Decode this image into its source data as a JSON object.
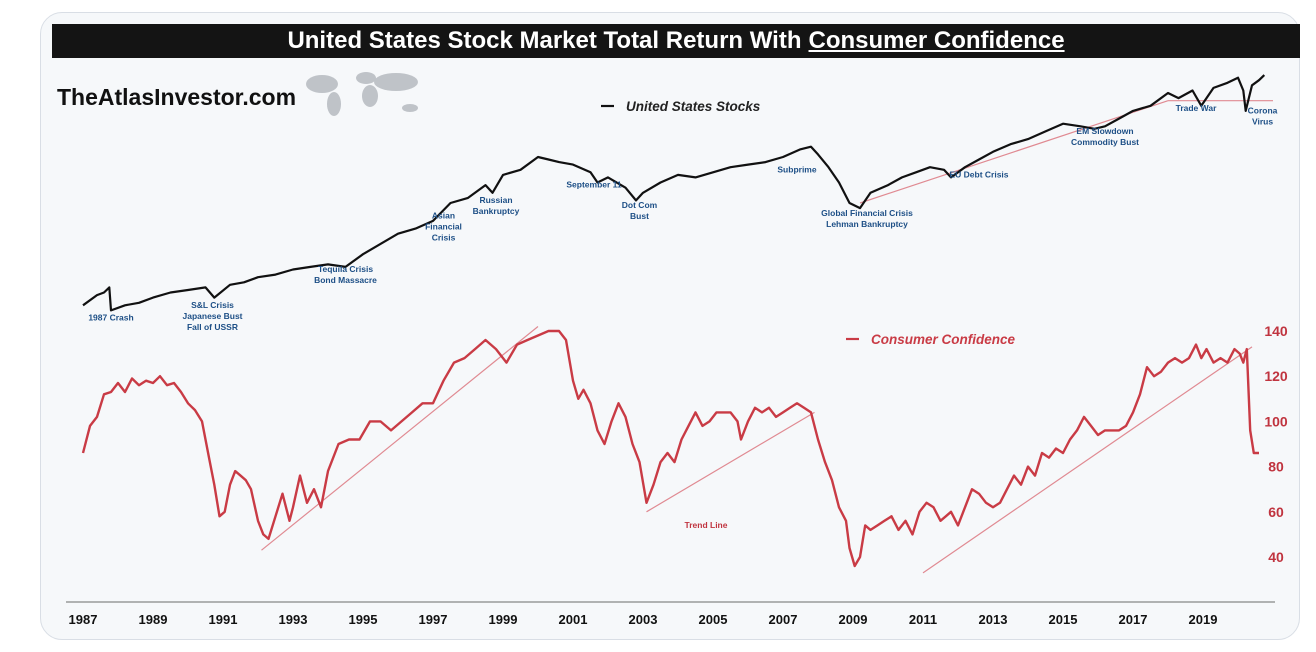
{
  "header": {
    "title_main": "United States Stock Market Total Return With",
    "title_emph": "Consumer Confidence",
    "brand": "TheAtlasInvestor.com"
  },
  "colors": {
    "stocks": "#111111",
    "confidence": "#c93b45",
    "trend": "#e08a92",
    "annotation": "#1d4f86"
  },
  "chart_data": {
    "type": "line",
    "x_ticks": [
      "1987",
      "1989",
      "1991",
      "1993",
      "1995",
      "1997",
      "1999",
      "2001",
      "2003",
      "2005",
      "2007",
      "2009",
      "2011",
      "2013",
      "2015",
      "2017",
      "2019"
    ],
    "y_ticks_right": [
      40,
      60,
      80,
      100,
      120,
      140
    ],
    "ylim_right": [
      30,
      145
    ],
    "xlim": [
      1987,
      2020.8
    ],
    "series": [
      {
        "name": "United States Stocks",
        "axis": "none",
        "x": [
          1987.0,
          1987.4,
          1987.6,
          1987.75,
          1987.8,
          1988.2,
          1988.6,
          1989.0,
          1989.5,
          1990.0,
          1990.5,
          1990.75,
          1991.2,
          1991.6,
          1992.0,
          1992.5,
          1993.0,
          1993.5,
          1994.0,
          1994.5,
          1995.0,
          1995.5,
          1996.0,
          1996.5,
          1997.0,
          1997.5,
          1998.0,
          1998.5,
          1998.7,
          1999.0,
          1999.5,
          2000.0,
          2000.3,
          2000.6,
          2001.0,
          2001.5,
          2001.7,
          2002.0,
          2002.5,
          2002.8,
          2003.0,
          2003.5,
          2004.0,
          2004.5,
          2005.0,
          2005.5,
          2006.0,
          2006.5,
          2007.0,
          2007.5,
          2007.8,
          2008.0,
          2008.3,
          2008.6,
          2008.9,
          2009.2,
          2009.5,
          2010.0,
          2010.4,
          2010.8,
          2011.2,
          2011.6,
          2011.8,
          2012.2,
          2012.6,
          2013.0,
          2013.5,
          2014.0,
          2014.5,
          2015.0,
          2015.5,
          2015.9,
          2016.2,
          2016.6,
          2017.0,
          2017.5,
          2018.0,
          2018.3,
          2018.7,
          2018.95,
          2019.3,
          2019.7,
          2020.0,
          2020.15,
          2020.22,
          2020.4,
          2020.6,
          2020.75
        ],
        "y": [
          32,
          36,
          37,
          39,
          30,
          32,
          33,
          35,
          37,
          38,
          39,
          35,
          40,
          41,
          43,
          44,
          46,
          47,
          48,
          47,
          52,
          56,
          60,
          62,
          65,
          72,
          74,
          79,
          76,
          83,
          85,
          90,
          89,
          88,
          87,
          84,
          80,
          82,
          78,
          73,
          76,
          80,
          83,
          82,
          84,
          86,
          87,
          88,
          90,
          93,
          94,
          91,
          86,
          80,
          72,
          70,
          76,
          79,
          82,
          84,
          86,
          85,
          82,
          86,
          89,
          92,
          95,
          97,
          100,
          103,
          102,
          101,
          102,
          105,
          108,
          110,
          115,
          113,
          116,
          110,
          117,
          119,
          121,
          116,
          108,
          118,
          120,
          122
        ]
      },
      {
        "name": "Consumer Confidence",
        "axis": "right",
        "x": [
          1987.0,
          1987.2,
          1987.4,
          1987.6,
          1987.8,
          1988.0,
          1988.2,
          1988.4,
          1988.6,
          1988.8,
          1989.0,
          1989.2,
          1989.4,
          1989.6,
          1989.8,
          1990.0,
          1990.2,
          1990.4,
          1990.6,
          1990.75,
          1990.9,
          1991.05,
          1991.2,
          1991.35,
          1991.5,
          1991.65,
          1991.8,
          1992.0,
          1992.15,
          1992.3,
          1992.5,
          1992.7,
          1992.9,
          1993.0,
          1993.2,
          1993.4,
          1993.6,
          1993.8,
          1994.0,
          1994.3,
          1994.6,
          1994.9,
          1995.2,
          1995.5,
          1995.8,
          1996.1,
          1996.4,
          1996.7,
          1997.0,
          1997.3,
          1997.6,
          1997.9,
          1998.2,
          1998.5,
          1998.8,
          1999.1,
          1999.4,
          1999.7,
          2000.0,
          2000.3,
          2000.6,
          2000.8,
          2001.0,
          2001.15,
          2001.3,
          2001.5,
          2001.7,
          2001.9,
          2002.1,
          2002.3,
          2002.5,
          2002.7,
          2002.9,
          2003.1,
          2003.3,
          2003.5,
          2003.7,
          2003.9,
          2004.1,
          2004.3,
          2004.5,
          2004.7,
          2004.9,
          2005.1,
          2005.3,
          2005.5,
          2005.7,
          2005.8,
          2006.0,
          2006.2,
          2006.4,
          2006.6,
          2006.8,
          2007.0,
          2007.2,
          2007.4,
          2007.6,
          2007.8,
          2008.0,
          2008.2,
          2008.4,
          2008.6,
          2008.8,
          2008.9,
          2009.05,
          2009.2,
          2009.35,
          2009.5,
          2009.7,
          2009.9,
          2010.1,
          2010.3,
          2010.5,
          2010.7,
          2010.9,
          2011.1,
          2011.3,
          2011.5,
          2011.65,
          2011.8,
          2012.0,
          2012.2,
          2012.4,
          2012.6,
          2012.8,
          2013.0,
          2013.2,
          2013.4,
          2013.6,
          2013.8,
          2014.0,
          2014.2,
          2014.4,
          2014.6,
          2014.8,
          2015.0,
          2015.2,
          2015.4,
          2015.6,
          2015.8,
          2016.0,
          2016.2,
          2016.4,
          2016.6,
          2016.8,
          2017.0,
          2017.2,
          2017.4,
          2017.6,
          2017.8,
          2018.0,
          2018.2,
          2018.4,
          2018.6,
          2018.8,
          2018.95,
          2019.1,
          2019.3,
          2019.5,
          2019.7,
          2019.9,
          2020.05,
          2020.15,
          2020.25,
          2020.35,
          2020.45,
          2020.6
        ],
        "y": [
          86,
          98,
          102,
          112,
          113,
          117,
          113,
          119,
          116,
          118,
          117,
          120,
          116,
          117,
          113,
          108,
          105,
          100,
          84,
          72,
          58,
          60,
          72,
          78,
          76,
          74,
          70,
          56,
          50,
          48,
          58,
          68,
          56,
          62,
          76,
          64,
          70,
          62,
          78,
          90,
          92,
          92,
          100,
          100,
          96,
          100,
          104,
          108,
          108,
          118,
          126,
          128,
          132,
          136,
          132,
          126,
          134,
          136,
          138,
          140,
          140,
          136,
          118,
          110,
          114,
          108,
          96,
          90,
          100,
          108,
          102,
          90,
          82,
          64,
          72,
          82,
          86,
          82,
          92,
          98,
          104,
          98,
          100,
          104,
          104,
          104,
          100,
          92,
          100,
          106,
          104,
          106,
          102,
          104,
          106,
          108,
          106,
          104,
          92,
          82,
          74,
          62,
          56,
          44,
          36,
          40,
          54,
          52,
          54,
          56,
          58,
          52,
          56,
          50,
          60,
          64,
          62,
          56,
          58,
          60,
          54,
          62,
          70,
          68,
          64,
          62,
          64,
          70,
          76,
          72,
          80,
          76,
          86,
          84,
          88,
          86,
          92,
          96,
          102,
          98,
          94,
          96,
          96,
          96,
          98,
          104,
          112,
          124,
          120,
          122,
          126,
          128,
          126,
          128,
          134,
          128,
          132,
          126,
          128,
          126,
          132,
          130,
          126,
          132,
          96,
          86,
          86
        ]
      }
    ],
    "trend_lines": [
      {
        "series": "Consumer Confidence",
        "x": [
          1992.1,
          2000.0
        ],
        "y": [
          43,
          142
        ]
      },
      {
        "series": "Consumer Confidence",
        "x": [
          2003.1,
          2007.9
        ],
        "y": [
          60,
          104
        ]
      },
      {
        "series": "Consumer Confidence",
        "x": [
          2011.0,
          2020.4
        ],
        "y": [
          33,
          133
        ]
      },
      {
        "series": "United States Stocks",
        "x": [
          2009.2,
          2018.0
        ],
        "y": [
          72,
          112
        ]
      },
      {
        "series": "United States Stocks",
        "x": [
          2018.0,
          2021.0
        ],
        "y": [
          112,
          112
        ]
      }
    ],
    "trend_label": "Trend Line",
    "annotations": [
      {
        "x": 1987.8,
        "y": 26,
        "lines": [
          "1987 Crash"
        ]
      },
      {
        "x": 1990.7,
        "y": 31,
        "lines": [
          "S&L Crisis",
          "Japanese Bust",
          "Fall of USSR"
        ]
      },
      {
        "x": 1994.5,
        "y": 45,
        "lines": [
          "Tequila Crisis",
          "Bond Massacre"
        ]
      },
      {
        "x": 1997.3,
        "y": 66,
        "lines": [
          "Asian",
          "Financial",
          "Crisis"
        ]
      },
      {
        "x": 1998.8,
        "y": 72,
        "lines": [
          "Russian",
          "Bankruptcy"
        ]
      },
      {
        "x": 2001.6,
        "y": 78,
        "lines": [
          "September 11"
        ]
      },
      {
        "x": 2002.9,
        "y": 70,
        "lines": [
          "Dot Com",
          "Bust"
        ]
      },
      {
        "x": 2007.4,
        "y": 84,
        "lines": [
          "Subprime"
        ]
      },
      {
        "x": 2009.4,
        "y": 67,
        "lines": [
          "Global Financial Crisis",
          "Lehman Bankruptcy"
        ]
      },
      {
        "x": 2012.6,
        "y": 82,
        "lines": [
          "EU Debt Crisis"
        ]
      },
      {
        "x": 2016.2,
        "y": 99,
        "lines": [
          "EM Slowdown",
          "Commodity Bust"
        ]
      },
      {
        "x": 2018.8,
        "y": 108,
        "lines": [
          "Trade War"
        ]
      },
      {
        "x": 2020.7,
        "y": 107,
        "lines": [
          "Corona",
          "Virus"
        ]
      }
    ],
    "legend": {
      "stocks_label": "United States Stocks",
      "confidence_label": "Consumer Confidence"
    }
  }
}
